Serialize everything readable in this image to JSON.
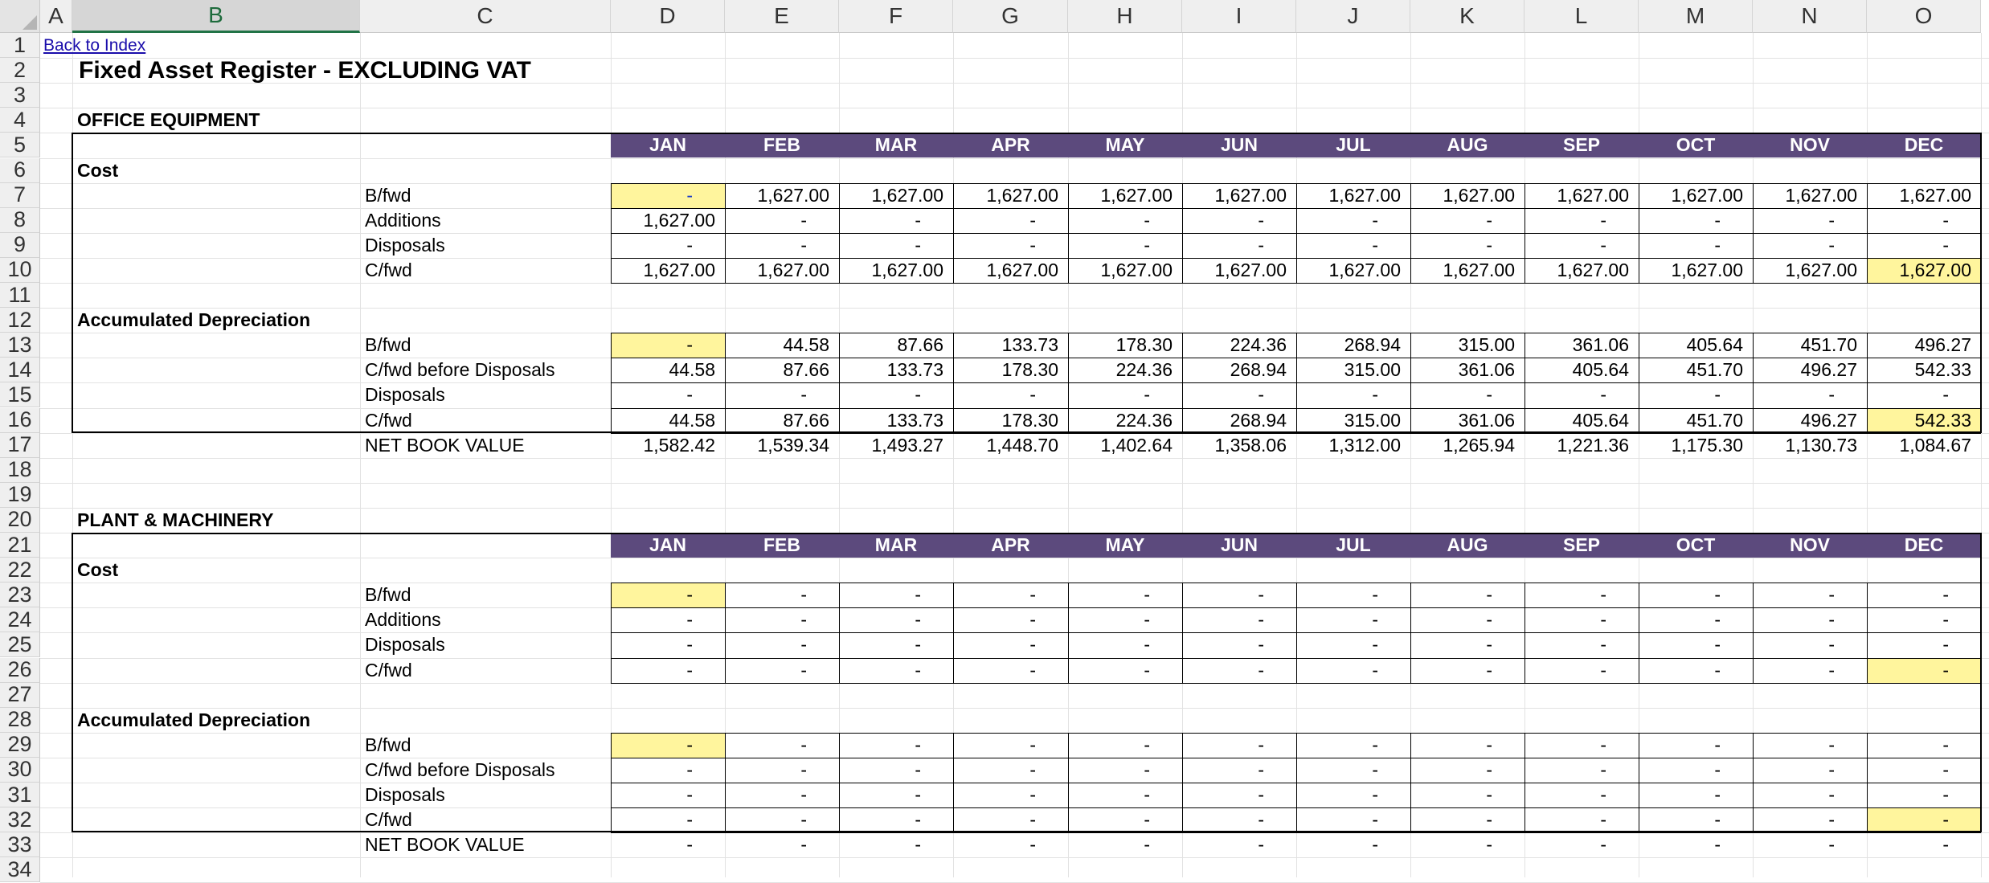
{
  "columns": [
    "A",
    "B",
    "C",
    "D",
    "E",
    "F",
    "G",
    "H",
    "I",
    "J",
    "K",
    "L",
    "M",
    "N",
    "O"
  ],
  "active_column": "B",
  "rows": [
    "1",
    "2",
    "3",
    "4",
    "5",
    "6",
    "7",
    "8",
    "9",
    "10",
    "11",
    "12",
    "13",
    "14",
    "15",
    "16",
    "17",
    "18",
    "19",
    "20",
    "21",
    "22",
    "23",
    "24",
    "25",
    "26",
    "27",
    "28",
    "29",
    "30",
    "31",
    "32",
    "33",
    "34"
  ],
  "link_text": "Back to Index",
  "title": "Fixed Asset Register - EXCLUDING VAT",
  "months": [
    "JAN",
    "FEB",
    "MAR",
    "APR",
    "MAY",
    "JUN",
    "JUL",
    "AUG",
    "SEP",
    "OCT",
    "NOV",
    "DEC"
  ],
  "colors": {
    "month_header_bg": "#5c4a7d",
    "highlight": "#fff59d",
    "active_col": "#217346"
  },
  "office": {
    "heading": "OFFICE EQUIPMENT",
    "cost_label": "Cost",
    "dep_label": "Accumulated Depreciation",
    "rows": {
      "bfwd": {
        "label": "B/fwd",
        "values": [
          "-",
          "1,627.00",
          "1,627.00",
          "1,627.00",
          "1,627.00",
          "1,627.00",
          "1,627.00",
          "1,627.00",
          "1,627.00",
          "1,627.00",
          "1,627.00",
          "1,627.00"
        ]
      },
      "additions": {
        "label": "Additions",
        "values": [
          "1,627.00",
          "-",
          "-",
          "-",
          "-",
          "-",
          "-",
          "-",
          "-",
          "-",
          "-",
          "-"
        ]
      },
      "disposals": {
        "label": "Disposals",
        "values": [
          "-",
          "-",
          "-",
          "-",
          "-",
          "-",
          "-",
          "-",
          "-",
          "-",
          "-",
          "-"
        ]
      },
      "cfwd": {
        "label": "C/fwd",
        "values": [
          "1,627.00",
          "1,627.00",
          "1,627.00",
          "1,627.00",
          "1,627.00",
          "1,627.00",
          "1,627.00",
          "1,627.00",
          "1,627.00",
          "1,627.00",
          "1,627.00",
          "1,627.00"
        ]
      },
      "dep_bfwd": {
        "label": "B/fwd",
        "values": [
          "-",
          "44.58",
          "87.66",
          "133.73",
          "178.30",
          "224.36",
          "268.94",
          "315.00",
          "361.06",
          "405.64",
          "451.70",
          "496.27"
        ]
      },
      "dep_cfwd_before": {
        "label": "C/fwd before Disposals",
        "values": [
          "44.58",
          "87.66",
          "133.73",
          "178.30",
          "224.36",
          "268.94",
          "315.00",
          "361.06",
          "405.64",
          "451.70",
          "496.27",
          "542.33"
        ]
      },
      "dep_disposals": {
        "label": "Disposals",
        "values": [
          "-",
          "-",
          "-",
          "-",
          "-",
          "-",
          "-",
          "-",
          "-",
          "-",
          "-",
          "-"
        ]
      },
      "dep_cfwd": {
        "label": "C/fwd",
        "values": [
          "44.58",
          "87.66",
          "133.73",
          "178.30",
          "224.36",
          "268.94",
          "315.00",
          "361.06",
          "405.64",
          "451.70",
          "496.27",
          "542.33"
        ]
      },
      "nbv": {
        "label": "NET BOOK VALUE",
        "values": [
          "1,582.42",
          "1,539.34",
          "1,493.27",
          "1,448.70",
          "1,402.64",
          "1,358.06",
          "1,312.00",
          "1,265.94",
          "1,221.36",
          "1,175.30",
          "1,130.73",
          "1,084.67"
        ]
      }
    }
  },
  "plant": {
    "heading": "PLANT & MACHINERY",
    "cost_label": "Cost",
    "dep_label": "Accumulated Depreciation",
    "rows": {
      "bfwd": {
        "label": "B/fwd",
        "values": [
          "-",
          "-",
          "-",
          "-",
          "-",
          "-",
          "-",
          "-",
          "-",
          "-",
          "-",
          "-"
        ]
      },
      "additions": {
        "label": "Additions",
        "values": [
          "-",
          "-",
          "-",
          "-",
          "-",
          "-",
          "-",
          "-",
          "-",
          "-",
          "-",
          "-"
        ]
      },
      "disposals": {
        "label": "Disposals",
        "values": [
          "-",
          "-",
          "-",
          "-",
          "-",
          "-",
          "-",
          "-",
          "-",
          "-",
          "-",
          "-"
        ]
      },
      "cfwd": {
        "label": "C/fwd",
        "values": [
          "-",
          "-",
          "-",
          "-",
          "-",
          "-",
          "-",
          "-",
          "-",
          "-",
          "-",
          "-"
        ]
      },
      "dep_bfwd": {
        "label": "B/fwd",
        "values": [
          "-",
          "-",
          "-",
          "-",
          "-",
          "-",
          "-",
          "-",
          "-",
          "-",
          "-",
          "-"
        ]
      },
      "dep_cfwd_before": {
        "label": "C/fwd before Disposals",
        "values": [
          "-",
          "-",
          "-",
          "-",
          "-",
          "-",
          "-",
          "-",
          "-",
          "-",
          "-",
          "-"
        ]
      },
      "dep_disposals": {
        "label": "Disposals",
        "values": [
          "-",
          "-",
          "-",
          "-",
          "-",
          "-",
          "-",
          "-",
          "-",
          "-",
          "-",
          "-"
        ]
      },
      "dep_cfwd": {
        "label": "C/fwd",
        "values": [
          "-",
          "-",
          "-",
          "-",
          "-",
          "-",
          "-",
          "-",
          "-",
          "-",
          "-",
          "-"
        ]
      },
      "nbv": {
        "label": "NET BOOK VALUE",
        "values": [
          "-",
          "-",
          "-",
          "-",
          "-",
          "-",
          "-",
          "-",
          "-",
          "-",
          "-",
          "-"
        ]
      }
    }
  }
}
